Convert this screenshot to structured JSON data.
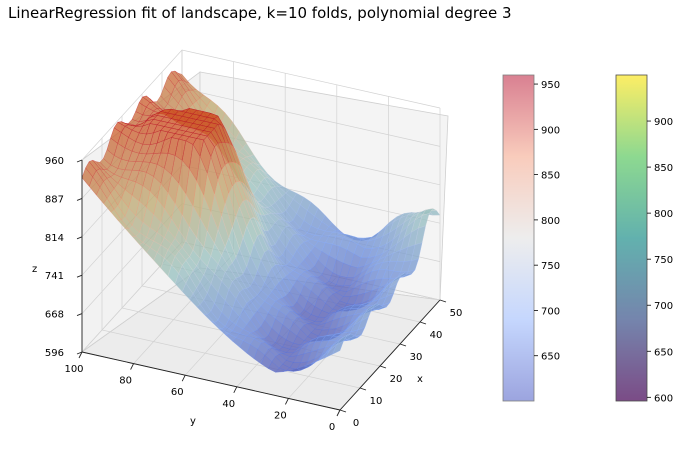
{
  "chart_data": {
    "type": "surface",
    "title": "LinearRegression fit of landscape, k=10 folds, polynomial degree 3",
    "xlabel": "x",
    "ylabel": "y",
    "zlabel": "z",
    "xlim": [
      0,
      50
    ],
    "ylim": [
      0,
      100
    ],
    "zlim": [
      596,
      960
    ],
    "x_ticks": [
      "0",
      "10",
      "20",
      "30",
      "40",
      "50"
    ],
    "y_ticks": [
      "100",
      "80",
      "60",
      "40",
      "20",
      "0"
    ],
    "z_ticks": [
      "960",
      "887",
      "814",
      "741",
      "668",
      "596"
    ],
    "grid": true,
    "surfaces": [
      {
        "name": "",
        "colormap": "coolwarm",
        "alpha": 0.5
      },
      {
        "name": "",
        "colormap": "viridis",
        "alpha": 0.7
      }
    ],
    "colorbars": [
      {
        "colormap": "coolwarm",
        "range": [
          600,
          960
        ],
        "ticks": [
          "950",
          "900",
          "850",
          "800",
          "750",
          "700",
          "650"
        ]
      },
      {
        "colormap": "viridis",
        "range": [
          596,
          950
        ],
        "ticks": [
          "900",
          "850",
          "800",
          "750",
          "700",
          "650",
          "600"
        ]
      }
    ]
  }
}
